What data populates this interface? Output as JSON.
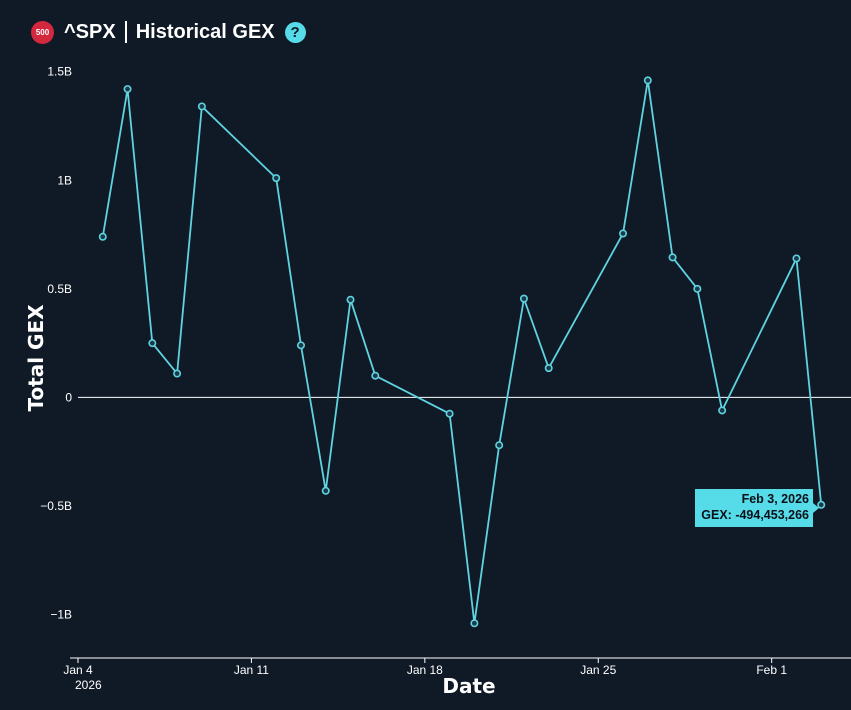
{
  "header": {
    "badge_text": "500",
    "ticker": "^SPX",
    "title": "Historical GEX",
    "help_icon": "question-circle-icon"
  },
  "chart_data": {
    "type": "line",
    "xlabel": "Date",
    "ylabel": "Total GEX",
    "ylim": [
      -1200000000,
      1600000000
    ],
    "xlim": [
      "2026-01-04",
      "2026-02-04"
    ],
    "y_ticks": [
      {
        "value": 1500000000,
        "label": "1.5B"
      },
      {
        "value": 1000000000,
        "label": "1B"
      },
      {
        "value": 500000000,
        "label": "0.5B"
      },
      {
        "value": 0,
        "label": "0"
      },
      {
        "value": -500000000,
        "label": "−0.5B"
      },
      {
        "value": -1000000000,
        "label": "−1B"
      }
    ],
    "x_ticks": [
      {
        "date": "2026-01-04",
        "label": "Jan 4",
        "sublabel": "2026"
      },
      {
        "date": "2026-01-11",
        "label": "Jan 11",
        "sublabel": ""
      },
      {
        "date": "2026-01-18",
        "label": "Jan 18",
        "sublabel": ""
      },
      {
        "date": "2026-01-25",
        "label": "Jan 25",
        "sublabel": ""
      },
      {
        "date": "2026-02-01",
        "label": "Feb 1",
        "sublabel": ""
      }
    ],
    "series": [
      {
        "color": "#5fd3e0",
        "points": [
          {
            "x": "2026-01-05",
            "y": 740000000
          },
          {
            "x": "2026-01-06",
            "y": 1420000000
          },
          {
            "x": "2026-01-07",
            "y": 250000000
          },
          {
            "x": "2026-01-08",
            "y": 110000000
          },
          {
            "x": "2026-01-09",
            "y": 1340000000
          },
          {
            "x": "2026-01-12",
            "y": 1010000000
          },
          {
            "x": "2026-01-13",
            "y": 240000000
          },
          {
            "x": "2026-01-14",
            "y": -430000000
          },
          {
            "x": "2026-01-15",
            "y": 450000000
          },
          {
            "x": "2026-01-16",
            "y": 100000000
          },
          {
            "x": "2026-01-19",
            "y": -75000000
          },
          {
            "x": "2026-01-20",
            "y": -1040000000
          },
          {
            "x": "2026-01-21",
            "y": -220000000
          },
          {
            "x": "2026-01-22",
            "y": 455000000
          },
          {
            "x": "2026-01-23",
            "y": 135000000
          },
          {
            "x": "2026-01-26",
            "y": 755000000
          },
          {
            "x": "2026-01-27",
            "y": 1460000000
          },
          {
            "x": "2026-01-28",
            "y": 645000000
          },
          {
            "x": "2026-01-29",
            "y": 500000000
          },
          {
            "x": "2026-01-30",
            "y": -60000000
          },
          {
            "x": "2026-02-02",
            "y": 640000000
          },
          {
            "x": "2026-02-03",
            "y": -494453266
          }
        ]
      }
    ],
    "tooltip": {
      "date": "Feb 3, 2026",
      "value_text": "GEX: -494,453,266",
      "bg_color": "#56dbe8"
    },
    "grid": false,
    "zero_line": true
  }
}
